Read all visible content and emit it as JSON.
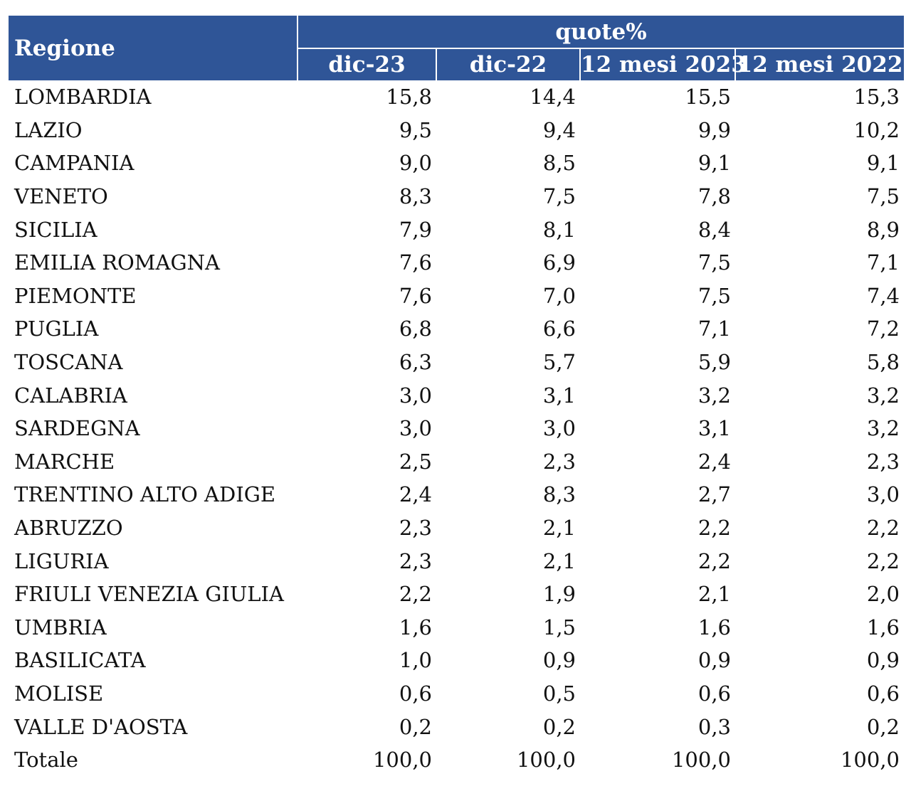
{
  "chart_data": {
    "type": "table",
    "header": {
      "region_label": "Regione",
      "group_label": "quote%",
      "columns": [
        "dic-23",
        "dic-22",
        "12 mesi 2023",
        "12 mesi 2022"
      ]
    },
    "rows": [
      {
        "region": "LOMBARDIA",
        "values": [
          "15,8",
          "14,4",
          "15,5",
          "15,3"
        ]
      },
      {
        "region": "LAZIO",
        "values": [
          "9,5",
          "9,4",
          "9,9",
          "10,2"
        ]
      },
      {
        "region": "CAMPANIA",
        "values": [
          "9,0",
          "8,5",
          "9,1",
          "9,1"
        ]
      },
      {
        "region": "VENETO",
        "values": [
          "8,3",
          "7,5",
          "7,8",
          "7,5"
        ]
      },
      {
        "region": "SICILIA",
        "values": [
          "7,9",
          "8,1",
          "8,4",
          "8,9"
        ]
      },
      {
        "region": "EMILIA ROMAGNA",
        "values": [
          "7,6",
          "6,9",
          "7,5",
          "7,1"
        ]
      },
      {
        "region": "PIEMONTE",
        "values": [
          "7,6",
          "7,0",
          "7,5",
          "7,4"
        ]
      },
      {
        "region": "PUGLIA",
        "values": [
          "6,8",
          "6,6",
          "7,1",
          "7,2"
        ]
      },
      {
        "region": "TOSCANA",
        "values": [
          "6,3",
          "5,7",
          "5,9",
          "5,8"
        ]
      },
      {
        "region": "CALABRIA",
        "values": [
          "3,0",
          "3,1",
          "3,2",
          "3,2"
        ]
      },
      {
        "region": "SARDEGNA",
        "values": [
          "3,0",
          "3,0",
          "3,1",
          "3,2"
        ]
      },
      {
        "region": "MARCHE",
        "values": [
          "2,5",
          "2,3",
          "2,4",
          "2,3"
        ]
      },
      {
        "region": "TRENTINO ALTO ADIGE",
        "values": [
          "2,4",
          "8,3",
          "2,7",
          "3,0"
        ]
      },
      {
        "region": "ABRUZZO",
        "values": [
          "2,3",
          "2,1",
          "2,2",
          "2,2"
        ]
      },
      {
        "region": "LIGURIA",
        "values": [
          "2,3",
          "2,1",
          "2,2",
          "2,2"
        ]
      },
      {
        "region": "FRIULI VENEZIA GIULIA",
        "values": [
          "2,2",
          "1,9",
          "2,1",
          "2,0"
        ]
      },
      {
        "region": "UMBRIA",
        "values": [
          "1,6",
          "1,5",
          "1,6",
          "1,6"
        ]
      },
      {
        "region": "BASILICATA",
        "values": [
          "1,0",
          "0,9",
          "0,9",
          "0,9"
        ]
      },
      {
        "region": "MOLISE",
        "values": [
          "0,6",
          "0,5",
          "0,6",
          "0,6"
        ]
      },
      {
        "region": "VALLE D'AOSTA",
        "values": [
          "0,2",
          "0,2",
          "0,3",
          "0,2"
        ]
      },
      {
        "region": "Totale",
        "values": [
          "100,0",
          "100,0",
          "100,0",
          "100,0"
        ]
      }
    ]
  },
  "colors": {
    "header_background": "#2f5597",
    "header_text": "#ffffff",
    "body_text": "#111111"
  }
}
